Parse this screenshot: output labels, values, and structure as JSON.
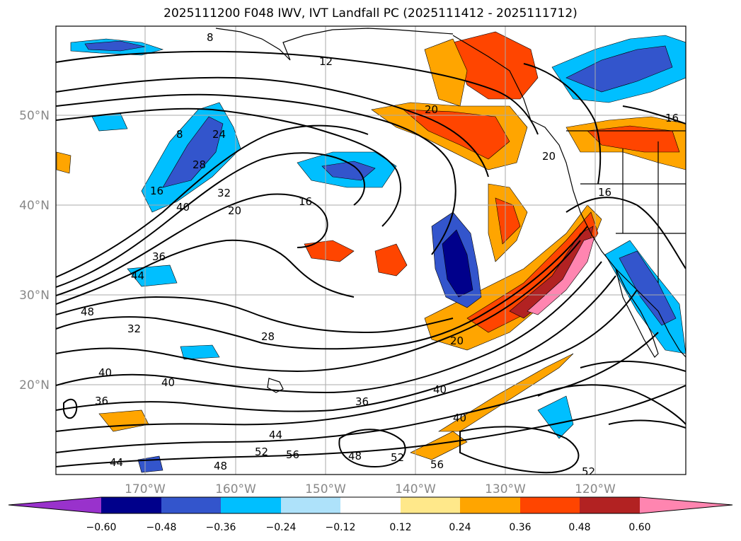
{
  "title": "2025111200 F048 IWV, IVT Landfall PC (2025111412 - 2025111712)",
  "map": {
    "lon_ticks": [
      "170°W",
      "160°W",
      "150°W",
      "140°W",
      "130°W",
      "120°W"
    ],
    "lat_ticks": [
      "50°N",
      "40°N",
      "30°N",
      "20°N"
    ],
    "contour_labels": [
      "8",
      "12",
      "20",
      "16",
      "24",
      "28",
      "32",
      "36",
      "40",
      "44",
      "48",
      "52",
      "56"
    ]
  },
  "colorbar": {
    "ticks": [
      "−0.60",
      "−0.48",
      "−0.36",
      "−0.24",
      "−0.12",
      "0.12",
      "0.24",
      "0.36",
      "0.48",
      "0.60"
    ],
    "colors": [
      "#9932cc",
      "#00008b",
      "#3355cc",
      "#00bfff",
      "#aee2fa",
      "#ffffff",
      "#ffe88a",
      "#ffa500",
      "#ff4500",
      "#b22222",
      "#ff85b0"
    ]
  }
}
